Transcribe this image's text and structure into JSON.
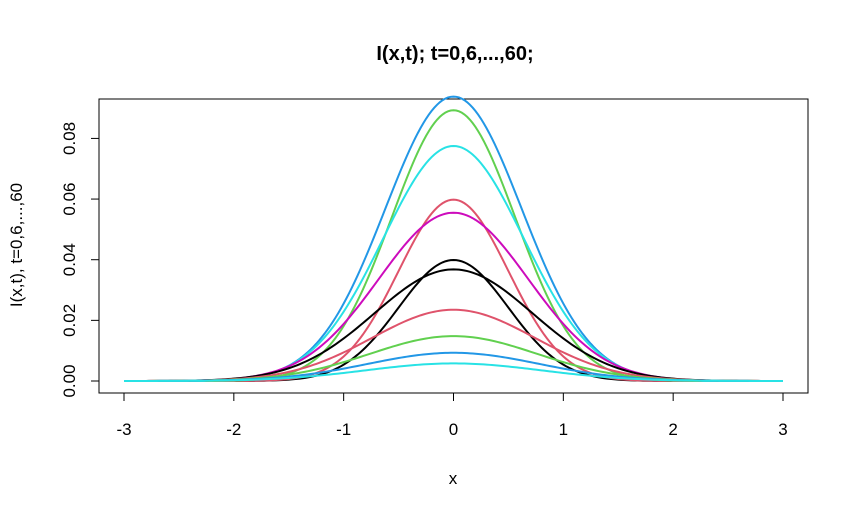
{
  "chart_data": {
    "type": "line",
    "title": "I(x,t); t=0,6,...,60;",
    "xlabel": "x",
    "ylabel": "I(x,t), t=0,6,...,60",
    "xlim": [
      -3,
      3
    ],
    "ylim": [
      0,
      0.093
    ],
    "x_ticks": [
      -3,
      -2,
      -1,
      0,
      1,
      2,
      3
    ],
    "x_tick_labels": [
      "-3",
      "-2",
      "-1",
      "0",
      "1",
      "2",
      "3"
    ],
    "y_ticks": [
      0,
      0.02,
      0.04,
      0.06,
      0.08
    ],
    "y_tick_labels": [
      "0.00",
      "0.02",
      "0.04",
      "0.06",
      "0.08"
    ],
    "grid": false,
    "legend": "none",
    "series": [
      {
        "t": 0,
        "color": "#000000",
        "peak": 0.0399,
        "sigma": 0.5
      },
      {
        "t": 6,
        "color": "#DF536B",
        "peak": 0.0598,
        "sigma": 0.5
      },
      {
        "t": 12,
        "color": "#61D04F",
        "peak": 0.0893,
        "sigma": 0.56
      },
      {
        "t": 18,
        "color": "#2297E6",
        "peak": 0.0938,
        "sigma": 0.62
      },
      {
        "t": 24,
        "color": "#28E2E5",
        "peak": 0.0775,
        "sigma": 0.64
      },
      {
        "t": 30,
        "color": "#CD0BBC",
        "peak": 0.0555,
        "sigma": 0.68
      },
      {
        "t": 36,
        "color": "#000000",
        "peak": 0.0368,
        "sigma": 0.72
      },
      {
        "t": 42,
        "color": "#DF536B",
        "peak": 0.0235,
        "sigma": 0.74
      },
      {
        "t": 48,
        "color": "#61D04F",
        "peak": 0.0148,
        "sigma": 0.76
      },
      {
        "t": 54,
        "color": "#2297E6",
        "peak": 0.0093,
        "sigma": 0.78
      },
      {
        "t": 60,
        "color": "#28E2E5",
        "peak": 0.0058,
        "sigma": 0.8
      }
    ]
  }
}
